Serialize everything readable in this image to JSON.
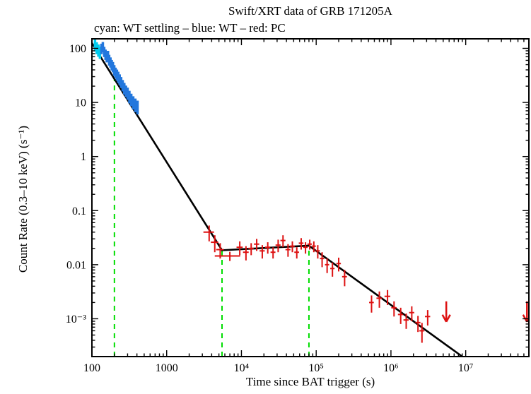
{
  "figure": {
    "title": "Swift/XRT data of GRB 171205A",
    "subtitle": "cyan: WT settling – blue: WT – red: PC",
    "xlabel": "Time since BAT trigger (s)",
    "ylabel": "Count Rate (0.3–10 keV) (s⁻¹)"
  },
  "chart_data": {
    "type": "scatter",
    "title": "Swift/XRT data of GRB 171205A",
    "subtitle": "cyan: WT settling – blue: WT – red: PC",
    "xlabel": "Time since BAT trigger (s)",
    "ylabel": "Count Rate (0.3–10 keV) (s⁻¹)",
    "x_scale": "log",
    "y_scale": "log",
    "xlim": [
      100,
      70000000.0
    ],
    "ylim": [
      0.0002,
      150
    ],
    "grid": false,
    "legend": "none",
    "x_ticks": [
      {
        "v": 100,
        "label": "100"
      },
      {
        "v": 1000,
        "label": "1000"
      },
      {
        "v": 10000,
        "label": "10⁴"
      },
      {
        "v": 100000,
        "label": "10⁵"
      },
      {
        "v": 1000000,
        "label": "10⁶"
      },
      {
        "v": 10000000,
        "label": "10⁷"
      }
    ],
    "y_ticks": [
      {
        "v": 0.001,
        "label": "10⁻³"
      },
      {
        "v": 0.01,
        "label": "0.01"
      },
      {
        "v": 0.1,
        "label": "0.1"
      },
      {
        "v": 1,
        "label": "1"
      },
      {
        "v": 10,
        "label": "10"
      },
      {
        "v": 100,
        "label": "100"
      }
    ],
    "series": [
      {
        "name": "WT settling",
        "color": "#00ccee",
        "width": 3.5,
        "points": [
          [
            110,
            118,
            30
          ],
          [
            116,
            104,
            26
          ],
          [
            122,
            94,
            24
          ],
          [
            128,
            86,
            22
          ]
        ]
      },
      {
        "name": "WT",
        "color": "#2277dd",
        "width": 3.5,
        "points": [
          [
            134,
            100,
            22
          ],
          [
            140,
            108,
            23
          ],
          [
            146,
            88,
            19
          ],
          [
            152,
            78,
            17
          ],
          [
            158,
            70,
            15
          ],
          [
            164,
            74,
            16
          ],
          [
            170,
            62,
            14
          ],
          [
            177,
            56,
            12
          ],
          [
            184,
            50,
            11
          ],
          [
            191,
            46,
            10
          ],
          [
            199,
            40,
            9
          ],
          [
            207,
            36,
            8
          ],
          [
            216,
            33,
            7.5
          ],
          [
            225,
            30,
            7
          ],
          [
            235,
            27,
            6
          ],
          [
            246,
            24,
            5.5
          ],
          [
            258,
            21,
            5
          ],
          [
            271,
            18.5,
            4.5
          ],
          [
            285,
            16.5,
            4
          ],
          [
            300,
            15,
            3.8
          ],
          [
            317,
            13,
            3.4
          ],
          [
            336,
            11.5,
            3
          ],
          [
            357,
            10.2,
            2.8
          ],
          [
            381,
            9.2,
            2.6
          ],
          [
            408,
            8.4,
            2.4
          ]
        ]
      },
      {
        "name": "PC",
        "color": "#dd1111",
        "width": 2,
        "points": [
          [
            3700,
            0.04,
            0.013,
            600
          ],
          [
            4400,
            0.026,
            0.009,
            500
          ],
          [
            5200,
            0.019,
            0.006,
            600
          ],
          [
            7000,
            0.0145,
            0.0028,
            2600
          ],
          [
            9500,
            0.021,
            0.006,
            900
          ],
          [
            11500,
            0.017,
            0.005,
            1000
          ],
          [
            13500,
            0.02,
            0.005,
            1100
          ],
          [
            16000,
            0.024,
            0.006,
            1300
          ],
          [
            19000,
            0.018,
            0.005,
            1500
          ],
          [
            22500,
            0.021,
            0.005,
            1800
          ],
          [
            26500,
            0.017,
            0.004,
            2000
          ],
          [
            31000,
            0.023,
            0.006,
            2400
          ],
          [
            36000,
            0.028,
            0.007,
            2800
          ],
          [
            42000,
            0.019,
            0.005,
            3200
          ],
          [
            48000,
            0.022,
            0.005,
            3600
          ],
          [
            55000,
            0.017,
            0.004,
            4000
          ],
          [
            63000,
            0.025,
            0.006,
            4500
          ],
          [
            72000,
            0.021,
            0.005,
            5000
          ],
          [
            82000,
            0.024,
            0.005,
            5500
          ],
          [
            93000,
            0.022,
            0.005,
            6000
          ],
          [
            105000,
            0.018,
            0.005,
            7000
          ],
          [
            120000,
            0.013,
            0.004,
            8000
          ],
          [
            140000,
            0.01,
            0.003,
            9000
          ],
          [
            165000,
            0.0085,
            0.0025,
            11000
          ],
          [
            200000,
            0.0105,
            0.003,
            14000
          ],
          [
            240000,
            0.006,
            0.002,
            18000
          ],
          [
            550000,
            0.002,
            0.0007,
            40000
          ],
          [
            700000,
            0.0024,
            0.0008,
            60000
          ],
          [
            900000,
            0.0026,
            0.0008,
            80000
          ],
          [
            1100000,
            0.0016,
            0.0005,
            90000
          ],
          [
            1350000,
            0.0012,
            0.0004,
            110000
          ],
          [
            1600000,
            0.00095,
            0.0003,
            130000
          ],
          [
            1900000,
            0.0013,
            0.0004,
            150000
          ],
          [
            2300000,
            0.00085,
            0.00028,
            180000
          ],
          [
            2600000,
            0.0006,
            0.00024,
            200000
          ],
          [
            3100000,
            0.0011,
            0.00035,
            250000
          ]
        ]
      }
    ],
    "upper_limits": {
      "name": "PC upper limits",
      "color": "#dd1111",
      "points": [
        [
          5500000.0,
          0.0021
        ],
        [
          66000000.0,
          0.0021
        ]
      ]
    },
    "fit_line": {
      "name": "broken power-law fit",
      "color": "#000000",
      "vertices": [
        [
          100,
          125
        ],
        [
          5500,
          0.0185
        ],
        [
          80000,
          0.0225
        ],
        [
          50000000.0,
          3.6e-05
        ]
      ]
    },
    "break_lines": {
      "name": "fit break times",
      "color": "#00dd00",
      "x": [
        200,
        5500,
        80000
      ]
    }
  }
}
